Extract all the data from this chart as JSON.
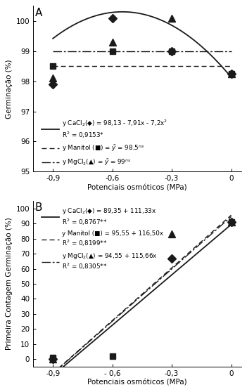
{
  "panel_A": {
    "label": "A",
    "xlim": [
      -1.0,
      0.05
    ],
    "ylim": [
      95,
      100.5
    ],
    "yticks": [
      95,
      96,
      97,
      98,
      99,
      100
    ],
    "xticks": [
      -0.9,
      -0.6,
      -0.3,
      0
    ],
    "xtick_labels": [
      "-0,9",
      "-0,6",
      "-0,3",
      "0"
    ],
    "ylabel": "Germinação (%)",
    "cacl2_data_x": [
      -0.9,
      -0.6,
      -0.3,
      0
    ],
    "cacl2_data_y": [
      97.9,
      100.1,
      99.0,
      98.25
    ],
    "manitol_data_x": [
      -0.9,
      -0.6,
      -0.3,
      0
    ],
    "manitol_data_y": [
      98.5,
      99.0,
      99.0,
      98.25
    ],
    "mgcl2_data_x": [
      -0.9,
      -0.6,
      -0.3,
      0
    ],
    "mgcl2_data_y": [
      98.1,
      99.3,
      100.1,
      98.25
    ],
    "xlabel": "Potenciais osmóticos (MPa)"
  },
  "panel_B": {
    "label": "B",
    "xlim": [
      -1.0,
      0.05
    ],
    "ylim": [
      -5,
      105
    ],
    "yticks": [
      0,
      10,
      20,
      30,
      40,
      50,
      60,
      70,
      80,
      90,
      100
    ],
    "xticks": [
      -0.9,
      -0.6,
      -0.3,
      0
    ],
    "xtick_labels": [
      "-0,9",
      "- 0,6",
      "-0,3",
      "0"
    ],
    "ylabel": "Primeira Contagem Germinação (%)",
    "xlabel": "Potenciais osmóticos (MPa)",
    "cacl2_data_x": [
      -0.9,
      -0.3,
      0.0
    ],
    "cacl2_data_y": [
      0.0,
      67.0,
      91.0
    ],
    "manitol_data_x": [
      -0.9,
      -0.6,
      0.0
    ],
    "manitol_data_y": [
      1.0,
      2.0,
      91.0
    ],
    "mgcl2_data_x": [
      -0.9,
      -0.3,
      0.0
    ],
    "mgcl2_data_y": [
      0.0,
      83.0,
      91.0
    ]
  },
  "line_color": "#1a1a1a",
  "bg_color": "#ffffff",
  "fontsize": 7.5
}
